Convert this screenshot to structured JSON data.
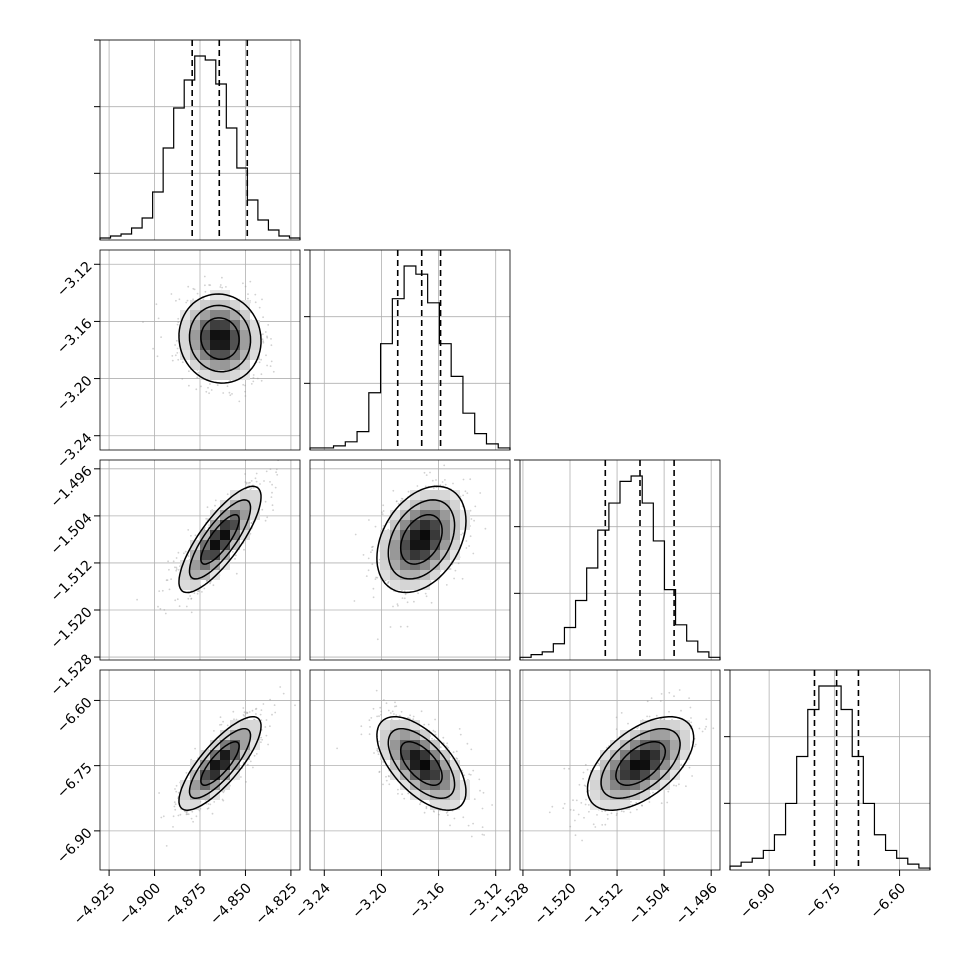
{
  "chart_data": {
    "type": "corner",
    "grid": true,
    "params": [
      {
        "range": [
          -4.93,
          -4.82
        ],
        "ticks": [
          -4.925,
          -4.9,
          -4.875,
          -4.85,
          -4.825
        ],
        "tick_labels": [
          "−4.925",
          "−4.900",
          "−4.875",
          "−4.850",
          "−4.825"
        ],
        "quantiles": [
          -4.8793,
          -4.8644,
          -4.849
        ],
        "mean": -4.864,
        "sd": 0.0105,
        "hist": [
          1,
          2,
          3,
          6,
          11,
          24,
          46,
          66,
          80,
          92,
          90,
          78,
          56,
          36,
          20,
          10,
          5,
          2,
          1
        ]
      },
      {
        "range": [
          -3.25,
          -3.11
        ],
        "ticks": [
          -3.24,
          -3.2,
          -3.16,
          -3.12
        ],
        "tick_labels": [
          "−3.24",
          "−3.20",
          "−3.16",
          "−3.12"
        ],
        "quantiles": [
          -3.1886,
          -3.1718,
          -3.1586
        ],
        "mean": -3.172,
        "sd": 0.0145,
        "hist": [
          1,
          1,
          2,
          4,
          9,
          28,
          52,
          74,
          90,
          86,
          72,
          52,
          36,
          18,
          8,
          3,
          1
        ]
      },
      {
        "range": [
          -1.5285,
          -1.4945
        ],
        "ticks": [
          -1.528,
          -1.52,
          -1.512,
          -1.504,
          -1.496
        ],
        "tick_labels": [
          "−1.528",
          "−1.520",
          "−1.512",
          "−1.504",
          "−1.496"
        ],
        "quantiles": [
          -1.514,
          -1.5081,
          -1.5023
        ],
        "mean": -1.508,
        "sd": 0.0042,
        "hist": [
          1,
          2,
          3,
          6,
          12,
          22,
          34,
          48,
          58,
          66,
          68,
          58,
          44,
          26,
          13,
          7,
          3,
          1
        ]
      },
      {
        "range": [
          -6.99,
          -6.53
        ],
        "ticks": [
          -6.9,
          -6.75,
          -6.6
        ],
        "tick_labels": [
          "−6.90",
          "−6.75",
          "−6.60"
        ],
        "quantiles": [
          -6.7957,
          -6.7448,
          -6.6946
        ],
        "mean": -6.745,
        "sd": 0.05,
        "hist": [
          2,
          4,
          6,
          10,
          18,
          34,
          58,
          82,
          94,
          94,
          82,
          58,
          34,
          18,
          10,
          6,
          3,
          1
        ]
      }
    ],
    "correlations": [
      [
        1,
        -0.05,
        0.8,
        0.8
      ],
      [
        -0.05,
        1,
        0.35,
        -0.6
      ],
      [
        0.8,
        0.35,
        1,
        0.55
      ],
      [
        0.8,
        -0.6,
        0.55,
        1
      ]
    ]
  }
}
